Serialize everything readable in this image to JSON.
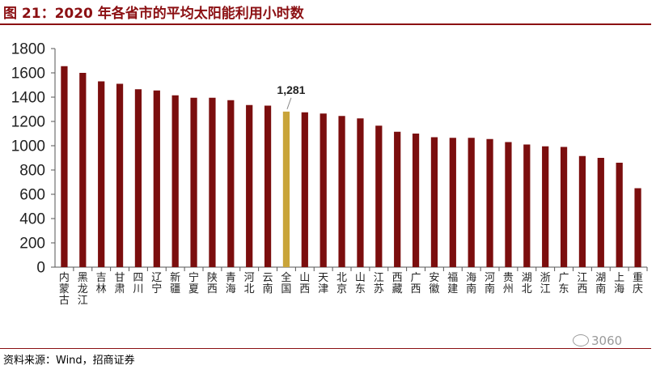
{
  "title": "图 21：2020 年各省市的平均太阳能利用小时数",
  "source": "资料来源：Wind，招商证券",
  "watermark": "3060",
  "colors": {
    "bar": "#7B0E0E",
    "highlight": "#C9A43A",
    "accent": "#8B0F12"
  },
  "chart_data": {
    "type": "bar",
    "title": "",
    "xlabel": "",
    "ylabel": "",
    "ylim": [
      0,
      1800
    ],
    "yticks": [
      0,
      200,
      400,
      600,
      800,
      1000,
      1200,
      1400,
      1600,
      1800
    ],
    "grid": false,
    "categories": [
      "内蒙古",
      "黑龙江",
      "吉林",
      "甘肃",
      "四川",
      "辽宁",
      "新疆",
      "宁夏",
      "陕西",
      "青海",
      "河北",
      "云南",
      "全国",
      "山西",
      "天津",
      "北京",
      "山东",
      "江苏",
      "西藏",
      "广西",
      "安徽",
      "福建",
      "海南",
      "河南",
      "贵州",
      "湖北",
      "浙江",
      "广东",
      "江西",
      "湖南",
      "上海",
      "重庆"
    ],
    "values": [
      1655,
      1600,
      1530,
      1510,
      1465,
      1455,
      1415,
      1395,
      1395,
      1375,
      1335,
      1330,
      1281,
      1275,
      1265,
      1245,
      1225,
      1165,
      1115,
      1100,
      1070,
      1065,
      1065,
      1055,
      1030,
      1010,
      995,
      990,
      915,
      900,
      860,
      650
    ],
    "highlight_category": "全国",
    "annotations": [
      {
        "category": "全国",
        "label": "1,281"
      }
    ]
  }
}
